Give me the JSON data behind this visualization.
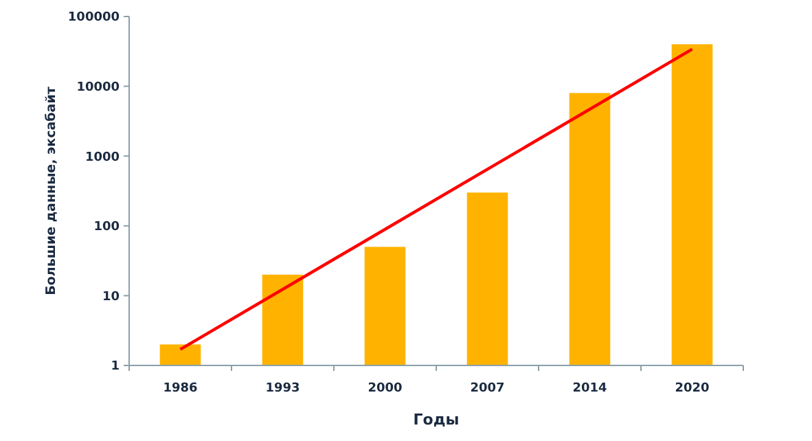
{
  "chart_data": {
    "type": "bar",
    "xlabel": "Годы",
    "ylabel": "Большие данные, эксабайт",
    "categories": [
      "1986",
      "1993",
      "2000",
      "2007",
      "2014",
      "2020"
    ],
    "log": true,
    "ylim": [
      1,
      100000
    ],
    "yticks": [
      1,
      10,
      100,
      1000,
      10000,
      100000
    ],
    "grid": false,
    "series": [
      {
        "color": "#ffb300",
        "values": [
          2,
          20,
          50,
          300,
          8000,
          40000
        ]
      },
      {
        "type": "line",
        "color": "#ff0000",
        "values": [
          1.7,
          null,
          null,
          null,
          null,
          34000
        ],
        "marker": "none"
      }
    ]
  }
}
